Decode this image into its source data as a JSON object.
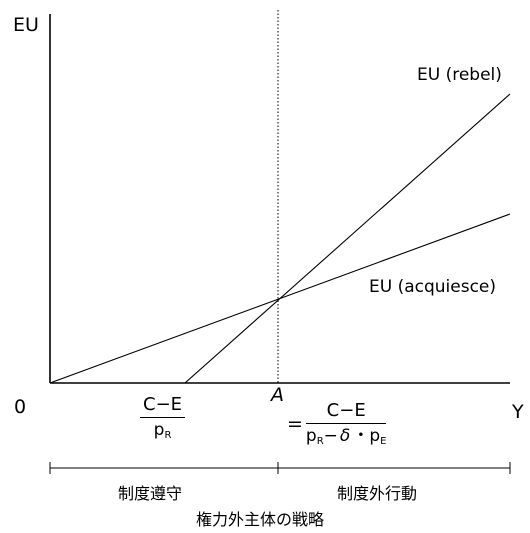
{
  "axes": {
    "y_label": "EU",
    "x_label": "Y",
    "origin_label": "0"
  },
  "curves": {
    "rebel_label": "EU (rebel)",
    "acquiesce_label": "EU (acquiesce)"
  },
  "threshold": {
    "point_label": "A",
    "equals_sign": "=",
    "numerator": "C−E",
    "denominator_p": "p",
    "denominator_sub_r": "R",
    "denominator_minus": "−",
    "denominator_delta": "δ",
    "denominator_dot": "・",
    "denominator_sub_e": "E"
  },
  "rebel_intercept": {
    "numerator": "C−E",
    "denominator_p": "p",
    "denominator_sub": "R"
  },
  "regions": {
    "left": "制度遵守",
    "right": "制度外行動",
    "axis_title": "権力外主体の戦略"
  },
  "colors": {
    "line": "#000000",
    "background": "#ffffff"
  }
}
